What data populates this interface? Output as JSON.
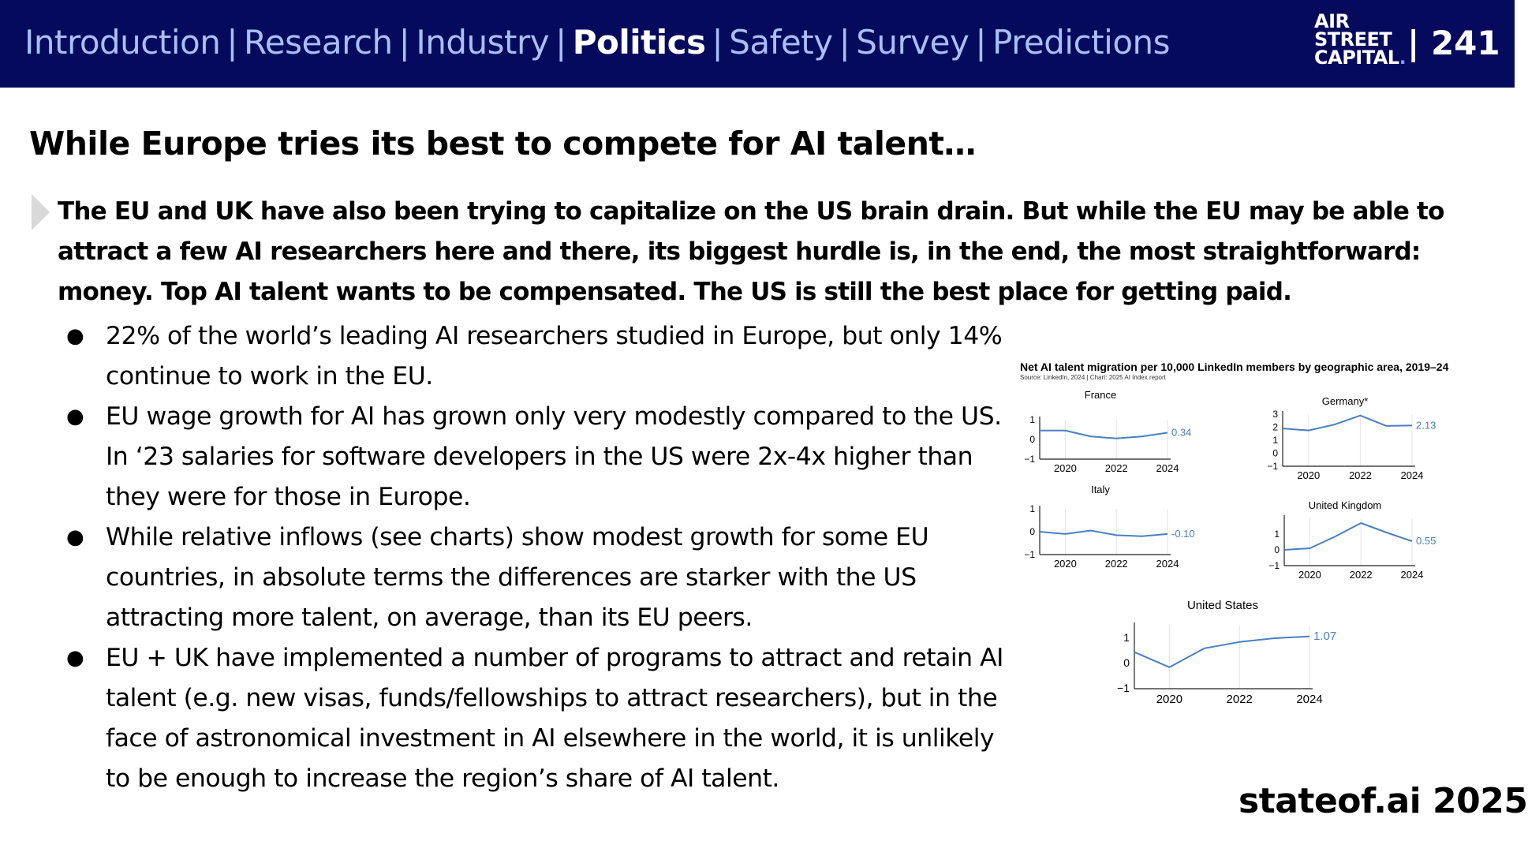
{
  "header": {
    "nav": [
      "Introduction",
      "Research",
      "Industry",
      "Politics",
      "Safety",
      "Survey",
      "Predictions"
    ],
    "active_nav": "Politics",
    "logo_lines": [
      "AIR",
      "STREET",
      "CAPITAL"
    ],
    "page_number": "| 241"
  },
  "slide": {
    "title": "While Europe tries its best to compete for AI talent…",
    "lead": "The EU and UK have also been trying to capitalize on the US brain drain. But while the EU may be able to attract a few AI researchers here and there, its biggest hurdle is, in the end, the most straightforward: money. Top AI talent wants to be compensated. The US is still the best place for getting paid.",
    "bullets": [
      "22% of the world’s leading AI researchers studied in Europe, but only 14% continue to work in the EU.",
      "EU wage growth for AI has grown only very modestly compared to the US. In ‘23 salaries for software developers in the US were 2x-4x higher than they were for those in Europe.",
      "While relative inflows (see charts) show modest growth for some EU countries, in absolute terms the differences are starker with the US attracting more talent, on average, than its EU peers.",
      "EU + UK have implemented a number of programs to attract and retain AI talent (e.g. new visas, funds/fellowships to attract researchers), but in the face of astronomical investment in AI elsewhere in the world, it is unlikely to be enough to increase the region’s share of AI talent."
    ],
    "footer": "stateof.ai 2025"
  },
  "chart_header": {
    "title": "Net AI talent migration per 10,000 LinkedIn members by geographic area, 2019–24",
    "source": "Source: LinkedIn, 2024 | Chart: 2025 AI Index report"
  },
  "colors": {
    "line": "#4a7fc1",
    "navy": "#050a5c",
    "nav": "#a9bff5"
  },
  "chart_data": [
    {
      "type": "line",
      "title": "France",
      "x": [
        2019,
        2020,
        2021,
        2022,
        2023,
        2024
      ],
      "values": [
        0.45,
        0.45,
        0.15,
        0.05,
        0.15,
        0.34
      ],
      "label": "0.34",
      "ylim": [
        -1,
        1
      ],
      "yticks": [
        "1",
        "0",
        "−1"
      ],
      "xticks": [
        "2020",
        "2022",
        "2024"
      ]
    },
    {
      "type": "line",
      "title": "Germany*",
      "x": [
        2019,
        2020,
        2021,
        2022,
        2023,
        2024
      ],
      "values": [
        1.9,
        1.75,
        2.2,
        2.9,
        2.1,
        2.13
      ],
      "label": "2.13",
      "ylim": [
        -1,
        3
      ],
      "yticks": [
        "3",
        "2",
        "1",
        "0",
        "−1"
      ],
      "xticks": [
        "2020",
        "2022",
        "2024"
      ]
    },
    {
      "type": "line",
      "title": "Italy",
      "x": [
        2019,
        2020,
        2021,
        2022,
        2023,
        2024
      ],
      "values": [
        0.0,
        -0.1,
        0.05,
        -0.15,
        -0.2,
        -0.1
      ],
      "label": "-0.10",
      "ylim": [
        -1,
        1
      ],
      "yticks": [
        "1",
        "0",
        "−1"
      ],
      "xticks": [
        "2020",
        "2022",
        "2024"
      ]
    },
    {
      "type": "line",
      "title": "United Kingdom",
      "x": [
        2019,
        2020,
        2021,
        2022,
        2023,
        2024
      ],
      "values": [
        0.0,
        0.1,
        0.85,
        1.7,
        1.1,
        0.55
      ],
      "label": "0.55",
      "ylim": [
        -1,
        2
      ],
      "yticks": [
        "1",
        "0",
        "−1"
      ],
      "xticks": [
        "2020",
        "2022",
        "2024"
      ]
    },
    {
      "type": "line",
      "title": "United States",
      "x": [
        2019,
        2020,
        2021,
        2022,
        2023,
        2024
      ],
      "values": [
        0.45,
        -0.15,
        0.6,
        0.85,
        1.0,
        1.07
      ],
      "label": "1.07",
      "ylim": [
        -1,
        1.5
      ],
      "yticks": [
        "1",
        "0",
        "−1"
      ],
      "xticks": [
        "2020",
        "2022",
        "2024"
      ]
    }
  ]
}
